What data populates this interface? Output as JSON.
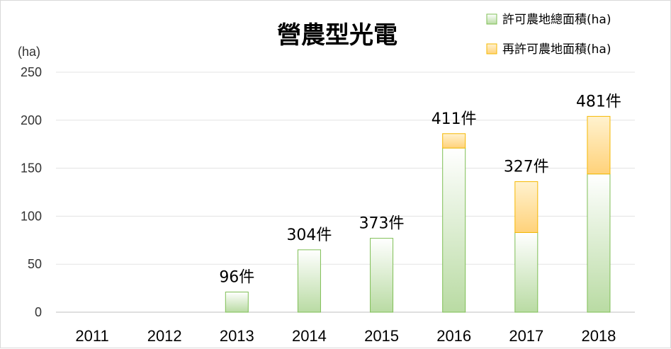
{
  "chart_data": {
    "type": "bar",
    "stacked": true,
    "title": "營農型光電",
    "ylabel": "(ha)",
    "categories": [
      "2011",
      "2012",
      "2013",
      "2014",
      "2015",
      "2016",
      "2017",
      "2018"
    ],
    "series": [
      {
        "name": "許可農地總面積(ha)",
        "values": [
          0,
          0,
          21,
          65,
          77,
          171,
          83,
          144
        ],
        "color": "#8fc76a"
      },
      {
        "name": "再許可農地面積(ha)",
        "values": [
          0,
          0,
          0,
          0,
          0,
          15,
          53,
          60
        ],
        "color": "#ffc85a"
      }
    ],
    "data_labels": [
      "",
      "",
      "96件",
      "304件",
      "373件",
      "411件",
      "327件",
      "481件"
    ],
    "yticks": [
      0,
      50,
      100,
      150,
      200,
      250
    ],
    "ylim": [
      0,
      250
    ],
    "grid": true,
    "legend_position": "top-right"
  }
}
